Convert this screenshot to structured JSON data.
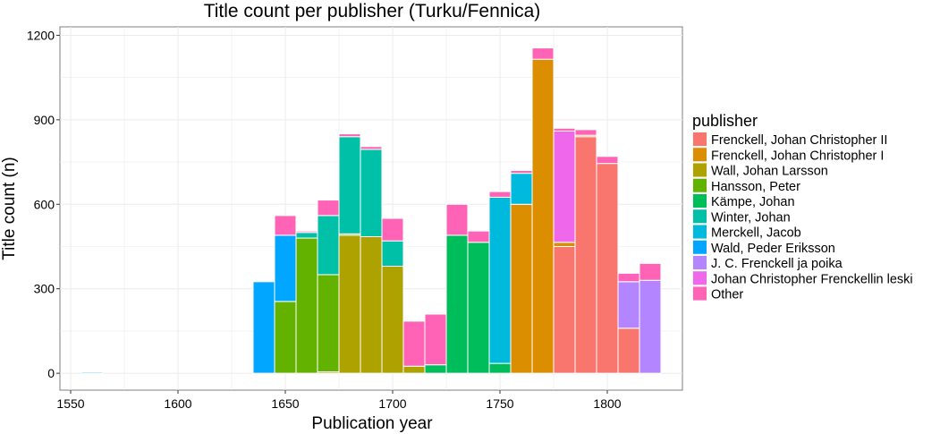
{
  "chart_data": {
    "type": "bar",
    "stacked": true,
    "title": "Title count per publisher (Turku/Fennica)",
    "xlabel": "Publication year",
    "ylabel": "Title count (n)",
    "xlim": [
      1545,
      1835
    ],
    "ylim": [
      -60,
      1230
    ],
    "xticks": [
      1550,
      1600,
      1650,
      1700,
      1750,
      1800
    ],
    "yticks": [
      0,
      300,
      600,
      900,
      1200
    ],
    "grid": true,
    "bin_width": 10,
    "legend_title": "publisher",
    "legend_position": "right",
    "x": [
      1560,
      1640,
      1650,
      1660,
      1670,
      1680,
      1690,
      1700,
      1710,
      1720,
      1730,
      1740,
      1750,
      1760,
      1770,
      1780,
      1790,
      1800,
      1810,
      1820
    ],
    "series": [
      {
        "name": "Frenckell, Johan Christopher II",
        "color": "#F8766D",
        "values": [
          0,
          0,
          0,
          0,
          0,
          0,
          0,
          0,
          0,
          0,
          0,
          0,
          0,
          0,
          0,
          450,
          840,
          745,
          160,
          0
        ]
      },
      {
        "name": "Frenckell, Johan Christopher I",
        "color": "#DB8E00",
        "values": [
          0,
          0,
          0,
          0,
          0,
          0,
          0,
          0,
          0,
          0,
          0,
          0,
          0,
          600,
          1115,
          15,
          5,
          0,
          0,
          0
        ]
      },
      {
        "name": "Wall, Johan Larsson",
        "color": "#AEA200",
        "values": [
          0,
          0,
          0,
          0,
          5,
          490,
          485,
          380,
          25,
          0,
          0,
          0,
          0,
          0,
          0,
          0,
          0,
          0,
          0,
          0
        ]
      },
      {
        "name": "Hansson, Peter",
        "color": "#64B200",
        "values": [
          0,
          0,
          255,
          480,
          345,
          5,
          0,
          0,
          0,
          0,
          0,
          0,
          0,
          0,
          0,
          0,
          0,
          0,
          0,
          0
        ]
      },
      {
        "name": "Kämpe, Johan",
        "color": "#00BD5C",
        "values": [
          0,
          0,
          0,
          0,
          0,
          0,
          0,
          0,
          0,
          30,
          490,
          465,
          35,
          0,
          0,
          0,
          0,
          0,
          0,
          0
        ]
      },
      {
        "name": "Winter, Johan",
        "color": "#00C1A7",
        "values": [
          0,
          0,
          0,
          20,
          210,
          345,
          310,
          90,
          0,
          0,
          0,
          0,
          0,
          0,
          0,
          0,
          0,
          0,
          0,
          0
        ]
      },
      {
        "name": "Merckell, Jacob",
        "color": "#00BADE",
        "values": [
          0,
          0,
          0,
          0,
          0,
          0,
          0,
          0,
          0,
          0,
          0,
          0,
          590,
          110,
          0,
          0,
          0,
          0,
          0,
          0
        ]
      },
      {
        "name": "Wald, Peder Eriksson",
        "color": "#00A6FF",
        "values": [
          4,
          325,
          235,
          0,
          0,
          0,
          0,
          0,
          0,
          0,
          0,
          0,
          0,
          0,
          0,
          0,
          0,
          0,
          0,
          0
        ]
      },
      {
        "name": "J. C. Frenckell ja poika",
        "color": "#B385FF",
        "values": [
          0,
          0,
          0,
          0,
          0,
          0,
          0,
          0,
          0,
          0,
          0,
          0,
          0,
          0,
          0,
          0,
          0,
          0,
          165,
          330
        ]
      },
      {
        "name": "Johan Christopher Frenckellin leski",
        "color": "#EF67EB",
        "values": [
          0,
          0,
          0,
          0,
          0,
          0,
          0,
          0,
          0,
          0,
          0,
          0,
          0,
          0,
          0,
          395,
          0,
          0,
          0,
          0
        ]
      },
      {
        "name": "Other",
        "color": "#FF63B6",
        "values": [
          0,
          0,
          70,
          5,
          55,
          10,
          10,
          80,
          160,
          180,
          110,
          40,
          20,
          10,
          40,
          10,
          20,
          25,
          30,
          60
        ]
      }
    ]
  }
}
